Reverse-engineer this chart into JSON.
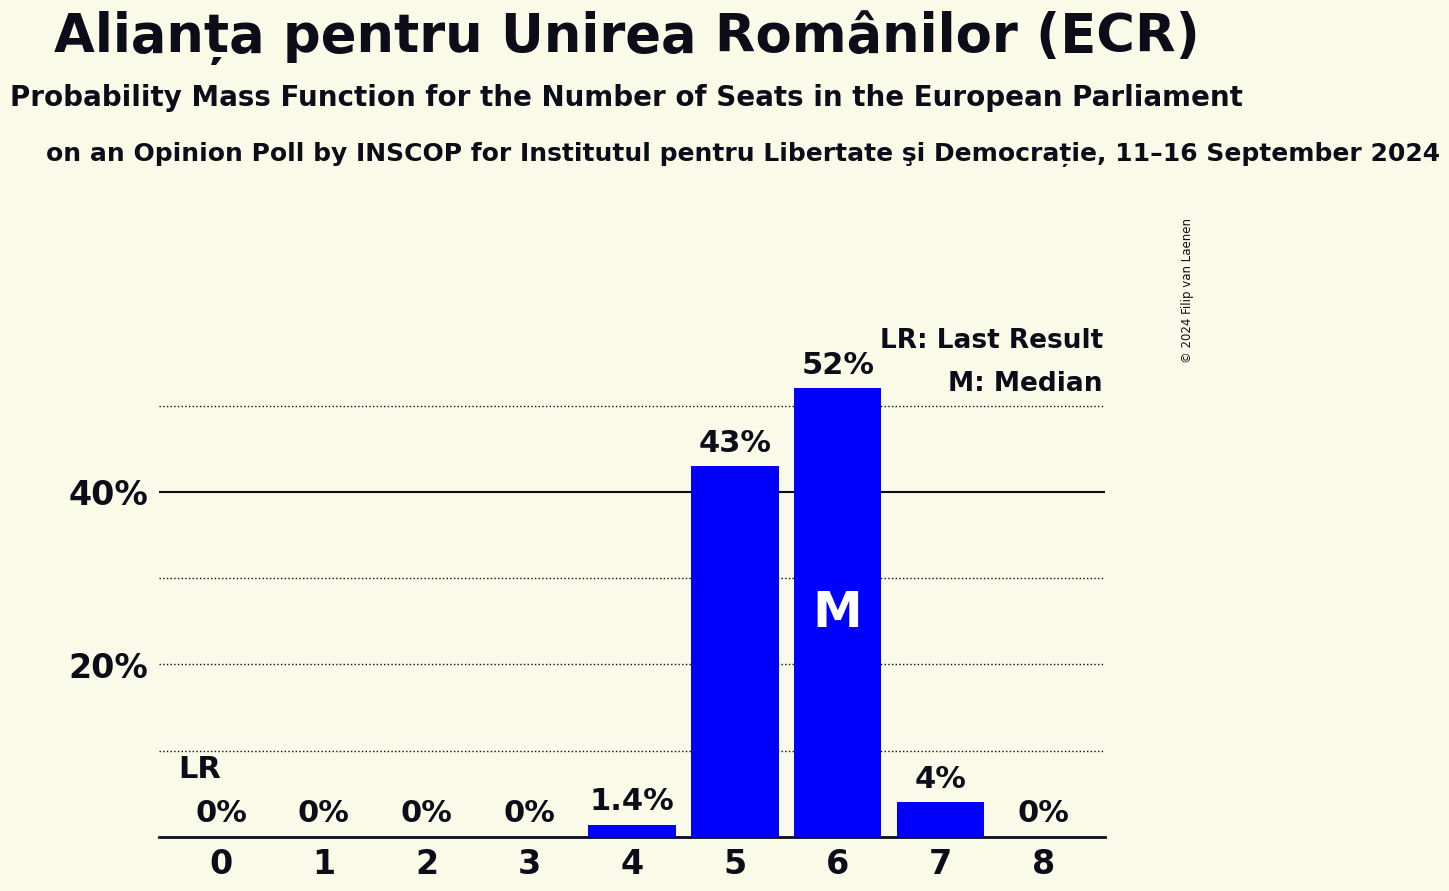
{
  "title": "Alianța pentru Unirea Românilor (ECR)",
  "subtitle": "Probability Mass Function for the Number of Seats in the European Parliament",
  "subsubtitle": "on an Opinion Poll by INSCOP for Institutul pentru Libertate şi Democrație, 11–16 September 2024",
  "categories": [
    0,
    1,
    2,
    3,
    4,
    5,
    6,
    7,
    8
  ],
  "values": [
    0.0,
    0.0,
    0.0,
    0.0,
    1.4,
    43.0,
    52.0,
    4.0,
    0.0
  ],
  "bar_color": "#0000FF",
  "background_color": "#FAFAE8",
  "median": 6,
  "last_result": 0,
  "ylim": [
    0,
    60
  ],
  "bar_labels": [
    "0%",
    "0%",
    "0%",
    "0%",
    "1.4%",
    "43%",
    "52%",
    "4%",
    "0%"
  ],
  "legend_lr": "LR: Last Result",
  "legend_m": "M: Median",
  "title_fontsize": 38,
  "subtitle_fontsize": 20,
  "subsubtitle_fontsize": 18,
  "copyright": "© 2024 Filip van Laenen",
  "dotted_lines": [
    10,
    20,
    30,
    50
  ],
  "solid_lines": [
    40
  ],
  "ytick_labels": [
    "20%",
    "40%"
  ],
  "ytick_values": [
    20,
    40
  ]
}
